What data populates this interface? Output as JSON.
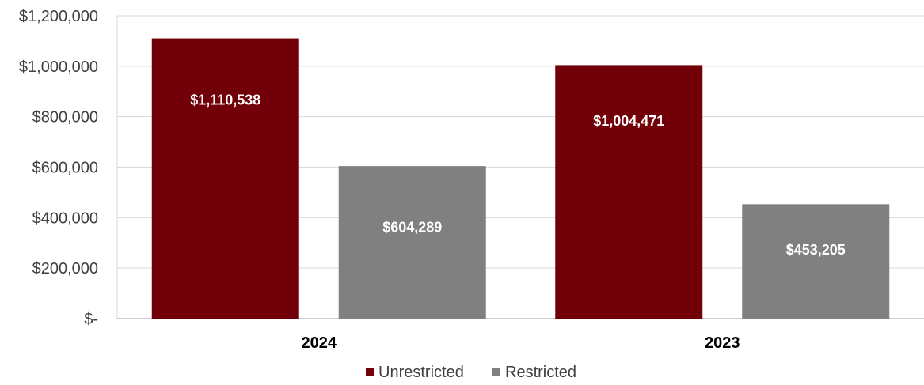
{
  "chart_data": {
    "type": "bar",
    "categories": [
      "2024",
      "2023"
    ],
    "series": [
      {
        "name": "Unrestricted",
        "color": "#720008",
        "values": [
          1110538,
          1004471
        ],
        "labels": [
          "$1,110,538",
          "$1,004,471"
        ]
      },
      {
        "name": "Restricted",
        "color": "#808080",
        "values": [
          604289,
          453205
        ],
        "labels": [
          "$604,289",
          "$453,205"
        ]
      }
    ],
    "ylim": [
      0,
      1200000
    ],
    "yticks": [
      0,
      200000,
      400000,
      600000,
      800000,
      1000000,
      1200000
    ],
    "ytick_labels": [
      "$-",
      "$200,000",
      "$400,000",
      "$600,000",
      "$800,000",
      "$1,000,000",
      "$1,200,000"
    ],
    "grid": true,
    "legend_position": "bottom-center",
    "title": "",
    "xlabel": "",
    "ylabel": ""
  }
}
